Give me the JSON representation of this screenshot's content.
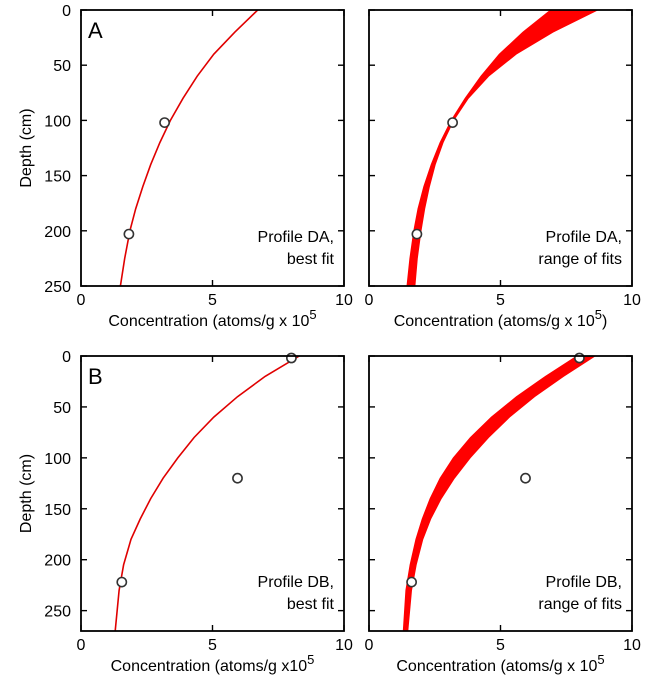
{
  "chart_data": [
    {
      "type": "line",
      "panel_letter": "A",
      "annotation": [
        "Profile DA,",
        "best fit"
      ],
      "xlabel": "Concentration (atoms/g x 10",
      "xlabel_exponent": "5",
      "xlabel_suffix": "",
      "ylabel": "Depth (cm)",
      "xlim": [
        0,
        10
      ],
      "ylim": [
        0,
        250
      ],
      "xticks": [
        0,
        5,
        10
      ],
      "yticks": [
        0,
        50,
        100,
        150,
        200,
        250
      ],
      "y_inverted": true,
      "grid": false,
      "series": [
        {
          "kind": "curve",
          "color": "#e00000",
          "x": [
            6.72,
            5.85,
            5.05,
            4.42,
            3.88,
            3.4,
            3.0,
            2.65,
            2.35,
            2.08,
            1.86,
            1.66,
            1.5
          ],
          "y": [
            0,
            20,
            40,
            60,
            80,
            100,
            120,
            140,
            160,
            180,
            200,
            225,
            250
          ]
        },
        {
          "kind": "points",
          "color": "#ffffff",
          "x": [
            3.18,
            1.82
          ],
          "y": [
            102,
            203
          ]
        }
      ]
    },
    {
      "type": "area",
      "panel_letter": "",
      "annotation": [
        "Profile DA,",
        "range of fits"
      ],
      "xlabel": "Concentration (atoms/g x 10",
      "xlabel_exponent": "5",
      "xlabel_suffix": ")",
      "ylabel": "",
      "xlim": [
        0,
        10
      ],
      "ylim": [
        0,
        250
      ],
      "xticks": [
        0,
        5,
        10
      ],
      "yticks": [
        0,
        50,
        100,
        150,
        200,
        250
      ],
      "y_inverted": true,
      "grid": false,
      "series": [
        {
          "kind": "band",
          "color": "#ff0000",
          "y": [
            0,
            20,
            40,
            60,
            80,
            100,
            120,
            140,
            160,
            180,
            200,
            225,
            250
          ],
          "x_low": [
            6.9,
            5.85,
            4.95,
            4.25,
            3.65,
            3.12,
            2.7,
            2.36,
            2.08,
            1.86,
            1.7,
            1.55,
            1.44
          ],
          "x_high": [
            8.7,
            7.0,
            5.6,
            4.55,
            3.78,
            3.22,
            2.82,
            2.52,
            2.3,
            2.12,
            1.98,
            1.84,
            1.75
          ]
        },
        {
          "kind": "points",
          "color": "#ffffff",
          "x": [
            3.18,
            1.82
          ],
          "y": [
            102,
            203
          ]
        }
      ]
    },
    {
      "type": "line",
      "panel_letter": "B",
      "annotation": [
        "Profile DB,",
        "best fit"
      ],
      "xlabel": "Concentration (atoms/g x10",
      "xlabel_exponent": "5",
      "xlabel_suffix": "",
      "ylabel": "Depth (cm)",
      "xlim": [
        0,
        10
      ],
      "ylim": [
        0,
        270
      ],
      "xticks": [
        0,
        5,
        10
      ],
      "yticks": [
        0,
        50,
        100,
        150,
        200,
        250
      ],
      "y_inverted": true,
      "grid": false,
      "series": [
        {
          "kind": "curve",
          "color": "#e00000",
          "x": [
            8.3,
            7.0,
            5.95,
            5.05,
            4.3,
            3.68,
            3.12,
            2.65,
            2.25,
            1.9,
            1.62,
            1.45,
            1.3
          ],
          "y": [
            0,
            20,
            40,
            60,
            80,
            100,
            120,
            140,
            160,
            180,
            205,
            230,
            270
          ]
        },
        {
          "kind": "points",
          "color": "#ffffff",
          "x": [
            8.0,
            5.95,
            1.55
          ],
          "y": [
            2,
            120,
            222
          ]
        }
      ]
    },
    {
      "type": "area",
      "panel_letter": "",
      "annotation": [
        "Profile DB,",
        "range of fits"
      ],
      "xlabel": "Concentration (atoms/g x 10",
      "xlabel_exponent": "5",
      "xlabel_suffix": "",
      "ylabel": "",
      "xlim": [
        0,
        10
      ],
      "ylim": [
        0,
        270
      ],
      "xticks": [
        0,
        5,
        10
      ],
      "yticks": [
        0,
        50,
        100,
        150,
        200,
        250
      ],
      "y_inverted": true,
      "grid": false,
      "series": [
        {
          "kind": "band",
          "color": "#ff0000",
          "y": [
            0,
            20,
            40,
            60,
            80,
            100,
            120,
            140,
            160,
            180,
            205,
            230,
            270
          ],
          "x_low": [
            7.9,
            6.7,
            5.6,
            4.65,
            3.85,
            3.2,
            2.7,
            2.32,
            2.02,
            1.78,
            1.56,
            1.4,
            1.3
          ],
          "x_high": [
            8.6,
            7.4,
            6.3,
            5.35,
            4.55,
            3.85,
            3.25,
            2.75,
            2.35,
            2.05,
            1.8,
            1.62,
            1.48
          ]
        },
        {
          "kind": "points",
          "color": "#ffffff",
          "x": [
            8.0,
            5.95,
            1.62
          ],
          "y": [
            2,
            120,
            222
          ]
        }
      ]
    }
  ]
}
